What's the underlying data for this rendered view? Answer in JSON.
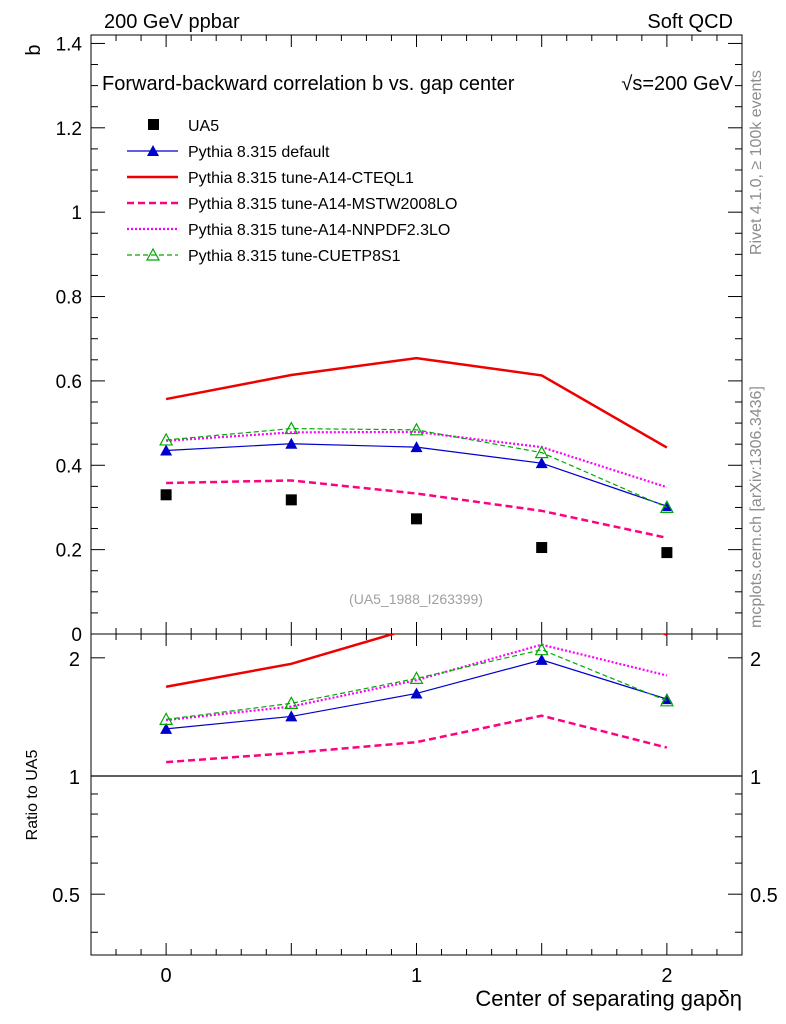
{
  "header": {
    "left": "200 GeV ppbar",
    "right": "Soft QCD"
  },
  "side_labels": {
    "rivet": "Rivet 4.1.0, ≥ 100k events",
    "mcplots": "mcplots.cern.ch [arXiv:1306.3436]"
  },
  "chart_data": {
    "type": "line",
    "title": "Forward-backward correlation b  vs. gap center",
    "energy_label": "√s=200 GeV",
    "watermark": "(UA5_1988_I263399)",
    "xlabel": "Center of separating gapδη",
    "ylabel": "b",
    "ratio_ylabel": "Ratio to UA5",
    "xlim": [
      -0.3,
      2.3
    ],
    "ylim": [
      0,
      1.42
    ],
    "ratio_ylim": [
      0.35,
      2.3
    ],
    "x_ticks": [
      "0",
      "1",
      "2"
    ],
    "y_ticks": [
      "0",
      "0.2",
      "0.4",
      "0.6",
      "0.8",
      "1",
      "1.2",
      "1.4"
    ],
    "ratio_ticks": [
      "0.5",
      "1",
      "2"
    ],
    "x": [
      0,
      0.5,
      1,
      1.5,
      2
    ],
    "series": [
      {
        "name": "UA5",
        "style": "data",
        "color": "#000000",
        "values": [
          0.33,
          0.318,
          0.273,
          0.205,
          0.193
        ]
      },
      {
        "name": "Pythia 8.315 default",
        "style": "solid",
        "marker": "triangle",
        "color": "#0000cc",
        "values": [
          0.435,
          0.451,
          0.443,
          0.405,
          0.303
        ]
      },
      {
        "name": "Pythia 8.315 tune-A14-CTEQL1",
        "style": "solid-thick",
        "color": "#ee0000",
        "values": [
          0.557,
          0.614,
          0.654,
          0.613,
          0.442
        ]
      },
      {
        "name": "Pythia 8.315 tune-A14-MSTW2008LO",
        "style": "dashed",
        "color": "#ff0080",
        "values": [
          0.358,
          0.364,
          0.333,
          0.292,
          0.228
        ]
      },
      {
        "name": "Pythia 8.315 tune-A14-NNPDF2.3LO",
        "style": "dotted",
        "color": "#ff00ff",
        "values": [
          0.458,
          0.478,
          0.479,
          0.443,
          0.348
        ]
      },
      {
        "name": "Pythia 8.315 tune-CUETP8S1",
        "style": "dashed-thin",
        "marker": "open-triangle",
        "color": "#00aa00",
        "values": [
          0.46,
          0.487,
          0.484,
          0.43,
          0.3
        ]
      }
    ]
  }
}
